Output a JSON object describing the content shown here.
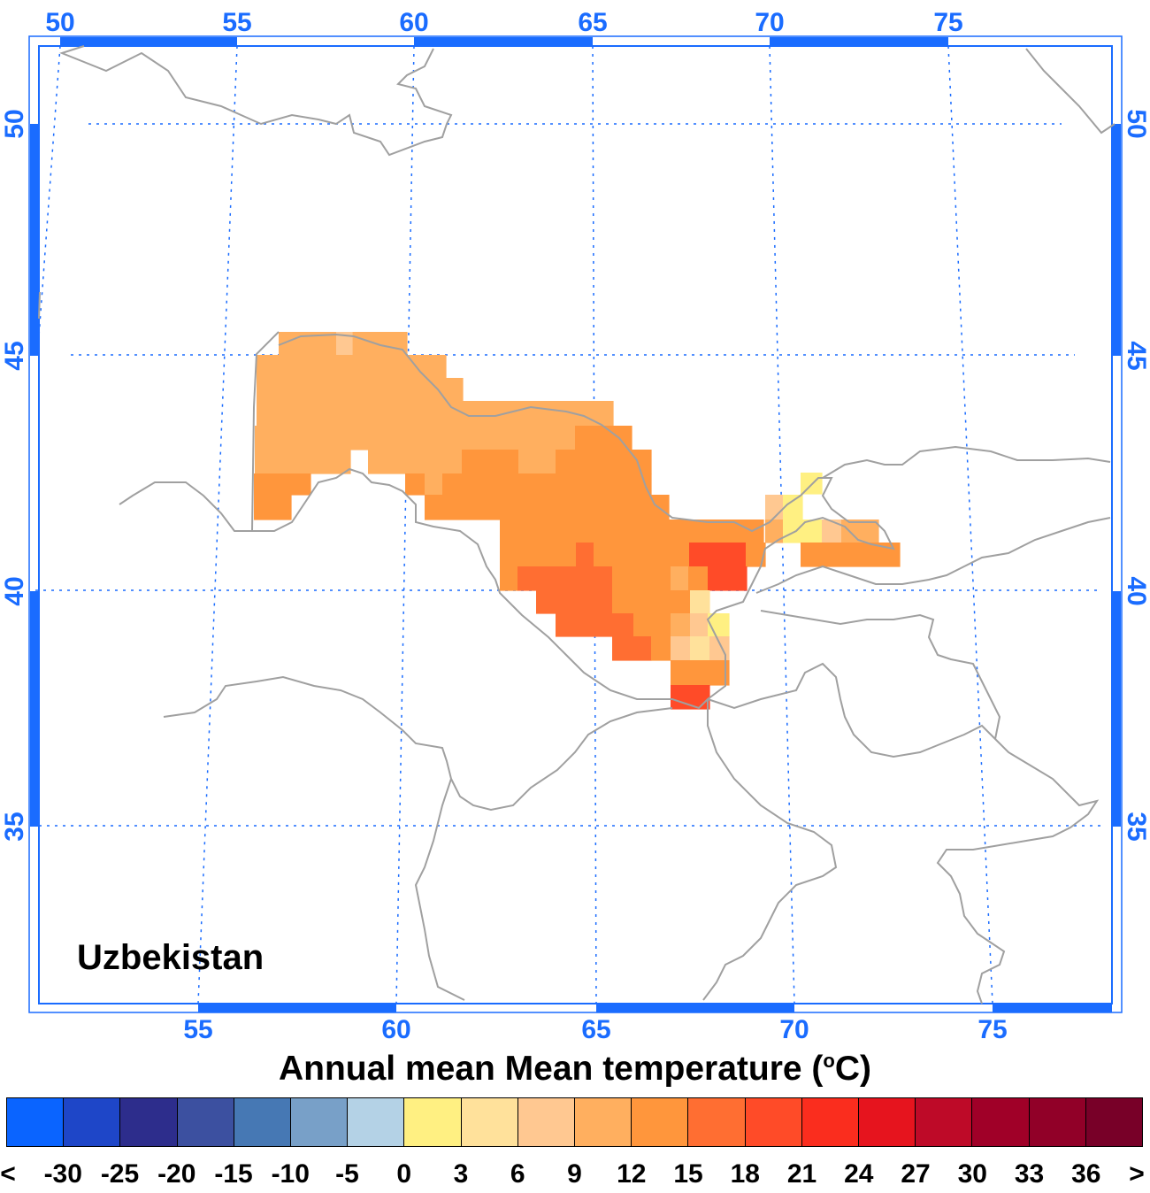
{
  "map": {
    "title": "Uzbekistan",
    "top_longitude_labels": [
      "50",
      "55",
      "60",
      "65",
      "70",
      "75"
    ],
    "bottom_longitude_labels": [
      "55",
      "60",
      "65",
      "70",
      "75"
    ],
    "left_latitude_labels": [
      "50",
      "45",
      "40",
      "35"
    ],
    "right_latitude_labels": [
      "50",
      "45",
      "40",
      "35"
    ],
    "accent_color": "#1a6cff",
    "border_color": "#a0a0a0"
  },
  "colorbar": {
    "title": "Annual mean Mean temperature (",
    "title_unit_sup": "o",
    "title_unit_end": "C)",
    "labels": [
      "<",
      "-30",
      "-25",
      "-20",
      "-15",
      "-10",
      "-5",
      "0",
      "3",
      "6",
      "9",
      "12",
      "15",
      "18",
      "21",
      "24",
      "27",
      "30",
      "33",
      "36",
      ">"
    ],
    "colors": [
      "#0a64ff",
      "#1e46c8",
      "#2d2d8c",
      "#3c50a0",
      "#4678b4",
      "#78a0c8",
      "#b4d2e6",
      "#fff082",
      "#ffe19b",
      "#ffc891",
      "#ffaf5f",
      "#ff963c",
      "#ff6e32",
      "#ff4b28",
      "#fa2d1e",
      "#e6141e",
      "#be0a28",
      "#a00028",
      "#910028",
      "#780028"
    ]
  }
}
